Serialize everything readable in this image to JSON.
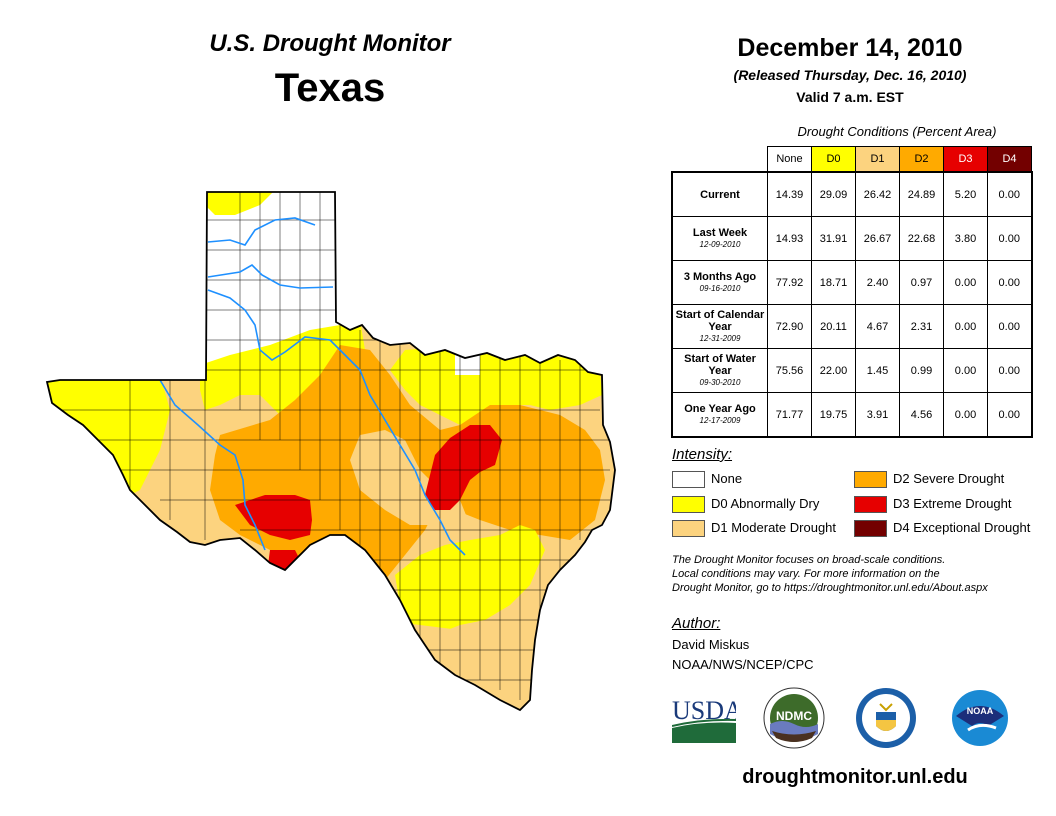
{
  "header": {
    "product": "U.S. Drought Monitor",
    "region": "Texas",
    "date": "December 14, 2010",
    "released": "(Released Thursday, Dec. 16, 2010)",
    "valid": "Valid 7 a.m. EST"
  },
  "table": {
    "caption": "Drought Conditions (Percent Area)",
    "columns": [
      {
        "label": "None",
        "color": "#ffffff",
        "text_color": "#000000"
      },
      {
        "label": "D0",
        "color": "#ffff00",
        "text_color": "#000000"
      },
      {
        "label": "D1",
        "color": "#fcd37f",
        "text_color": "#000000"
      },
      {
        "label": "D2",
        "color": "#ffaa00",
        "text_color": "#000000"
      },
      {
        "label": "D3",
        "color": "#e60000",
        "text_color": "#ffffff"
      },
      {
        "label": "D4",
        "color": "#730000",
        "text_color": "#ffffff"
      }
    ],
    "rows": [
      {
        "label": "Current",
        "date": "",
        "values": [
          "14.39",
          "29.09",
          "26.42",
          "24.89",
          "5.20",
          "0.00"
        ]
      },
      {
        "label": "Last Week",
        "date": "12-09-2010",
        "values": [
          "14.93",
          "31.91",
          "26.67",
          "22.68",
          "3.80",
          "0.00"
        ]
      },
      {
        "label": "3 Months Ago",
        "date": "09-16-2010",
        "values": [
          "77.92",
          "18.71",
          "2.40",
          "0.97",
          "0.00",
          "0.00"
        ]
      },
      {
        "label": "Start of Calendar Year",
        "date": "12-31-2009",
        "values": [
          "72.90",
          "20.11",
          "4.67",
          "2.31",
          "0.00",
          "0.00"
        ]
      },
      {
        "label": "Start of Water Year",
        "date": "09-30-2010",
        "values": [
          "75.56",
          "22.00",
          "1.45",
          "0.99",
          "0.00",
          "0.00"
        ]
      },
      {
        "label": "One Year Ago",
        "date": "12-17-2009",
        "values": [
          "71.77",
          "19.75",
          "3.91",
          "4.56",
          "0.00",
          "0.00"
        ]
      }
    ]
  },
  "legend": {
    "title": "Intensity:",
    "items": [
      {
        "label": "None",
        "color": "#ffffff"
      },
      {
        "label": "D0 Abnormally Dry",
        "color": "#ffff00"
      },
      {
        "label": "D1 Moderate Drought",
        "color": "#fcd37f"
      },
      {
        "label": "D2 Severe Drought",
        "color": "#ffaa00"
      },
      {
        "label": "D3 Extreme Drought",
        "color": "#e60000"
      },
      {
        "label": "D4 Exceptional Drought",
        "color": "#730000"
      }
    ]
  },
  "note": {
    "line1": "The Drought Monitor focuses on broad-scale conditions.",
    "line2": "Local conditions may vary. For more information on the",
    "line3": "Drought Monitor, go to https://droughtmonitor.unl.edu/About.aspx"
  },
  "author": {
    "heading": "Author:",
    "name": "David Miskus",
    "org": "NOAA/NWS/NCEP/CPC"
  },
  "logos": {
    "usda": "USDA",
    "ndmc": "NDMC",
    "noaa": "NOAA"
  },
  "footer": {
    "site": "droughtmonitor.unl.edu"
  },
  "map_colors": {
    "none": "#ffffff",
    "d0": "#ffff00",
    "d1": "#fcd37f",
    "d2": "#ffaa00",
    "d3": "#e60000",
    "river": "#1e90ff"
  }
}
